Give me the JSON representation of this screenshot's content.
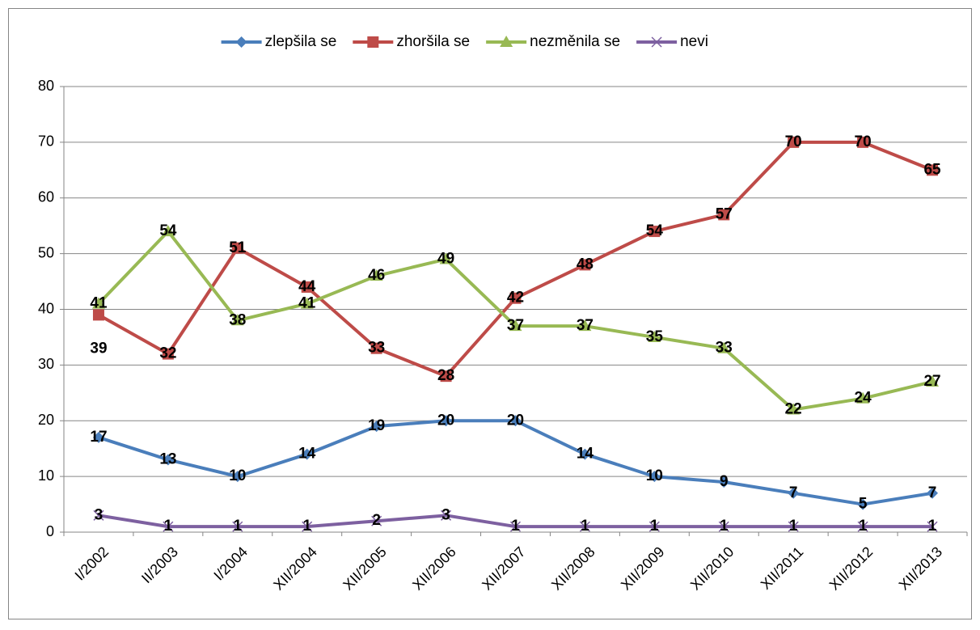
{
  "chart_data": {
    "type": "line",
    "categories": [
      "I/2002",
      "II/2003",
      "I/2004",
      "XII/2004",
      "XII/2005",
      "XII/2006",
      "XII/2007",
      "XII/2008",
      "XII/2009",
      "XII/2010",
      "XII/2011",
      "XII/2012",
      "XII/2013"
    ],
    "series": [
      {
        "name": "zlepšila se",
        "color": "#4a7ebb",
        "marker": "diamond",
        "values": [
          17,
          13,
          10,
          14,
          19,
          20,
          20,
          14,
          10,
          9,
          7,
          5,
          7
        ]
      },
      {
        "name": "zhoršila se",
        "color": "#be4b48",
        "marker": "square",
        "values": [
          39,
          32,
          51,
          44,
          33,
          28,
          42,
          48,
          54,
          57,
          70,
          70,
          65
        ]
      },
      {
        "name": "nezměnila se",
        "color": "#98b954",
        "marker": "triangle",
        "values": [
          41,
          54,
          38,
          41,
          46,
          49,
          37,
          37,
          35,
          33,
          22,
          24,
          27
        ]
      },
      {
        "name": "nevi",
        "color": "#7d60a0",
        "marker": "x",
        "values": [
          3,
          1,
          1,
          1,
          2,
          3,
          1,
          1,
          1,
          1,
          1,
          1,
          1
        ]
      }
    ],
    "ylim": [
      0,
      80
    ],
    "yticks": [
      0,
      10,
      20,
      30,
      40,
      50,
      60,
      70,
      80
    ],
    "grid": true,
    "legend": "top"
  }
}
